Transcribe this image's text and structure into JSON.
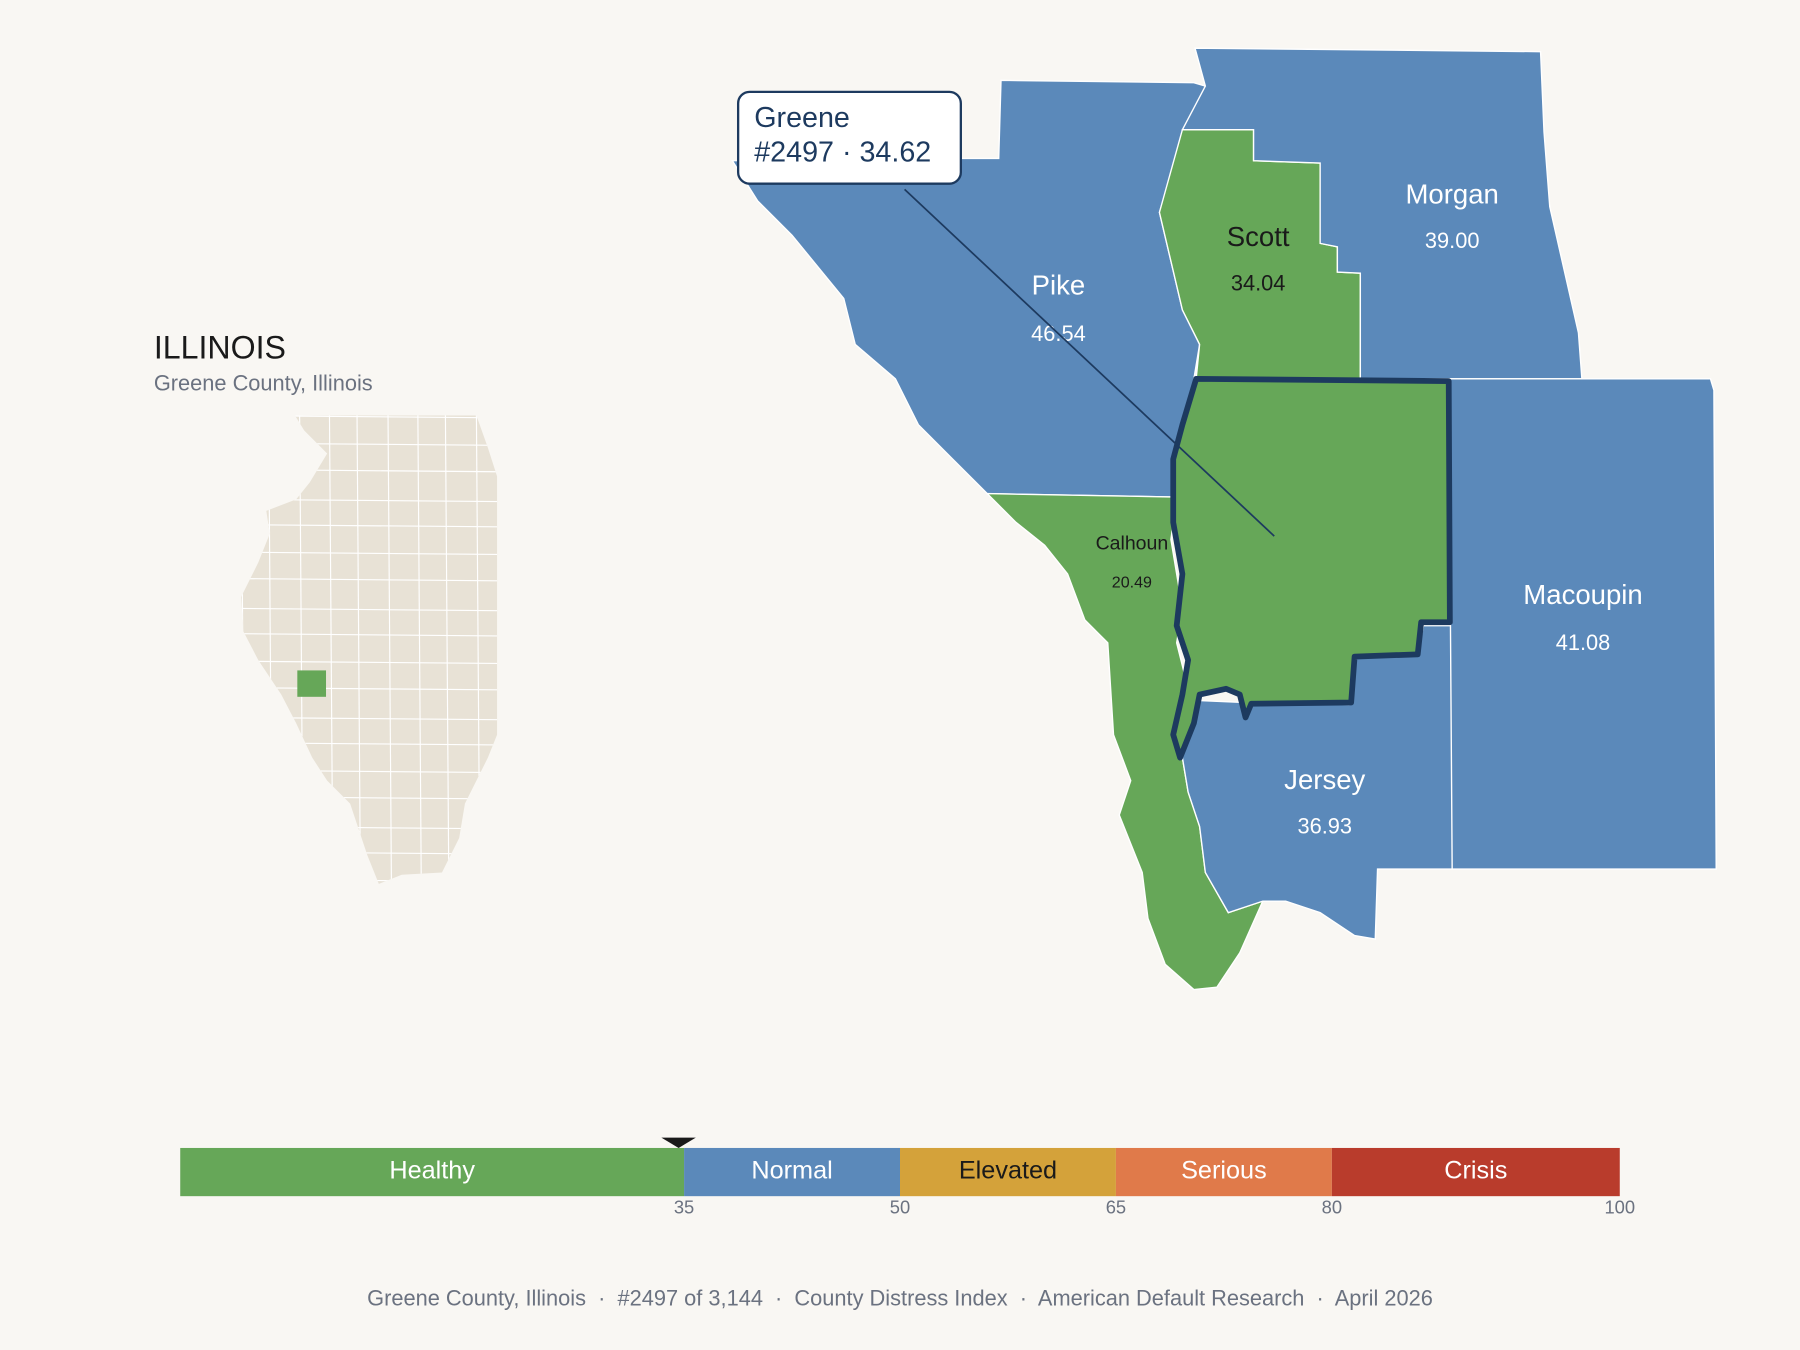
{
  "title": "ILLINOIS",
  "subtitle": "Greene County, Illinois",
  "state_map": {
    "fill": "#e8e2d6",
    "highlight": "#66a758"
  },
  "counties": [
    {
      "name": "Pike",
      "value": "46.54",
      "color": "#5b89ba"
    },
    {
      "name": "Scott",
      "value": "34.04",
      "color": "#66a758"
    },
    {
      "name": "Morgan",
      "value": "39.00",
      "color": "#5b89ba"
    },
    {
      "name": "Calhoun",
      "value": "20.49",
      "color": "#66a758"
    },
    {
      "name": "Jersey",
      "value": "36.93",
      "color": "#5b89ba"
    },
    {
      "name": "Macoupin",
      "value": "41.08",
      "color": "#5b89ba"
    }
  ],
  "focus": {
    "color": "#66a758",
    "outline": "#1d3a5f"
  },
  "tooltip": {
    "title": "Greene",
    "detail": "#2497 · 34.62"
  },
  "legend": {
    "bands": [
      {
        "label": "Healthy",
        "color": "#66a758"
      },
      {
        "label": "Normal",
        "color": "#5b89ba"
      },
      {
        "label": "Elevated",
        "color": "#d4a23a"
      },
      {
        "label": "Serious",
        "color": "#e07a4a"
      },
      {
        "label": "Crisis",
        "color": "#b93c2c"
      }
    ],
    "ticks": [
      35,
      50,
      65,
      80,
      100
    ],
    "marker": 34.62
  },
  "footer": "Greene County, Illinois  ·  #2497 of 3,144  ·  County Distress Index  ·  American Default Research  ·  April 2026"
}
